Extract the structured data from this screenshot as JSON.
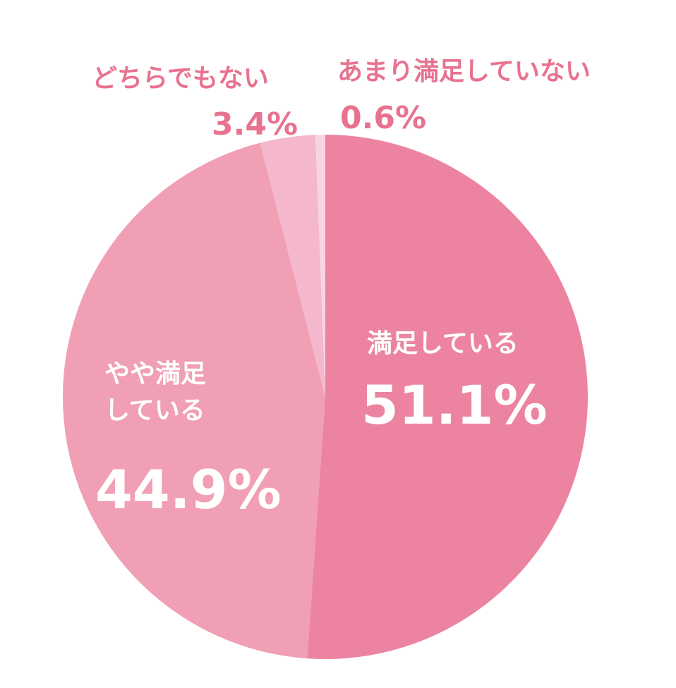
{
  "chart_data": {
    "type": "pie",
    "categories": [
      "満足している",
      "やや満足している",
      "どちらでもない",
      "あまり満足していない"
    ],
    "values": [
      51.1,
      44.9,
      3.4,
      0.6
    ],
    "value_labels": [
      "51.1%",
      "44.9%",
      "3.4%",
      "0.6%"
    ],
    "colors": [
      "#ec84a1",
      "#f09fb4",
      "#f4b7cb",
      "#f8d4e0"
    ]
  }
}
